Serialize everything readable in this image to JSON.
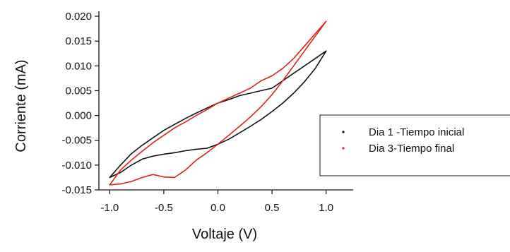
{
  "chart_data": {
    "type": "line",
    "title": "",
    "xlabel": "Voltaje (V)",
    "ylabel": "Corriente (mA)",
    "xlim": [
      -1.1,
      1.25
    ],
    "ylim": [
      -0.015,
      0.021
    ],
    "xticks": [
      -1.0,
      -0.5,
      0.0,
      0.5,
      1.0
    ],
    "xtick_labels": [
      "-1.0",
      "-0.5",
      "0.0",
      "0.5",
      "1.0"
    ],
    "yticks": [
      -0.015,
      -0.01,
      -0.005,
      0.0,
      0.005,
      0.01,
      0.015,
      0.02
    ],
    "ytick_labels": [
      "-0.015",
      "-0.010",
      "-0.005",
      "0.000",
      "0.005",
      "0.010",
      "0.015",
      "0.020"
    ],
    "grid": false,
    "legend_position": "right",
    "series": [
      {
        "name": "Dia 1 -Tiempo inicial",
        "color": "#111111",
        "x": [
          -1.0,
          -0.9,
          -0.8,
          -0.7,
          -0.6,
          -0.5,
          -0.4,
          -0.3,
          -0.2,
          -0.1,
          0.0,
          0.1,
          0.2,
          0.3,
          0.4,
          0.5,
          0.6,
          0.7,
          0.8,
          0.9,
          1.0,
          0.9,
          0.8,
          0.7,
          0.6,
          0.5,
          0.4,
          0.3,
          0.2,
          0.1,
          0.0,
          -0.1,
          -0.2,
          -0.3,
          -0.4,
          -0.5,
          -0.6,
          -0.7,
          -0.8,
          -0.9,
          -1.0
        ],
        "y": [
          -0.0125,
          -0.0115,
          -0.01,
          -0.0088,
          -0.0082,
          -0.0078,
          -0.0075,
          -0.0071,
          -0.0068,
          -0.0066,
          -0.0058,
          -0.0048,
          -0.0035,
          -0.0022,
          -0.0008,
          0.0008,
          0.0025,
          0.0045,
          0.0068,
          0.0095,
          0.013,
          0.0115,
          0.01,
          0.0085,
          0.007,
          0.0055,
          0.005,
          0.0045,
          0.004,
          0.0032,
          0.0025,
          0.0015,
          0.0005,
          -0.0006,
          -0.0018,
          -0.003,
          -0.0045,
          -0.006,
          -0.0077,
          -0.01,
          -0.0125
        ]
      },
      {
        "name": "Dia 3-Tiempo final",
        "color": "#e0201a",
        "x": [
          -1.0,
          -0.9,
          -0.8,
          -0.7,
          -0.6,
          -0.5,
          -0.4,
          -0.3,
          -0.2,
          -0.1,
          0.0,
          0.1,
          0.2,
          0.3,
          0.4,
          0.5,
          0.6,
          0.7,
          0.8,
          0.9,
          1.0,
          0.9,
          0.8,
          0.7,
          0.6,
          0.5,
          0.4,
          0.3,
          0.2,
          0.1,
          0.0,
          -0.1,
          -0.2,
          -0.3,
          -0.4,
          -0.5,
          -0.6,
          -0.7,
          -0.8,
          -0.9,
          -1.0
        ],
        "y": [
          -0.014,
          -0.0138,
          -0.0133,
          -0.0125,
          -0.0119,
          -0.0124,
          -0.0125,
          -0.011,
          -0.009,
          -0.0075,
          -0.0058,
          -0.004,
          -0.0022,
          -0.0003,
          0.0018,
          0.0042,
          0.007,
          0.01,
          0.013,
          0.016,
          0.019,
          0.0165,
          0.014,
          0.0115,
          0.0095,
          0.008,
          0.007,
          0.0055,
          0.0045,
          0.0035,
          0.0025,
          0.0012,
          0.0,
          -0.0013,
          -0.0025,
          -0.004,
          -0.0055,
          -0.0072,
          -0.009,
          -0.011,
          -0.014
        ]
      }
    ]
  }
}
